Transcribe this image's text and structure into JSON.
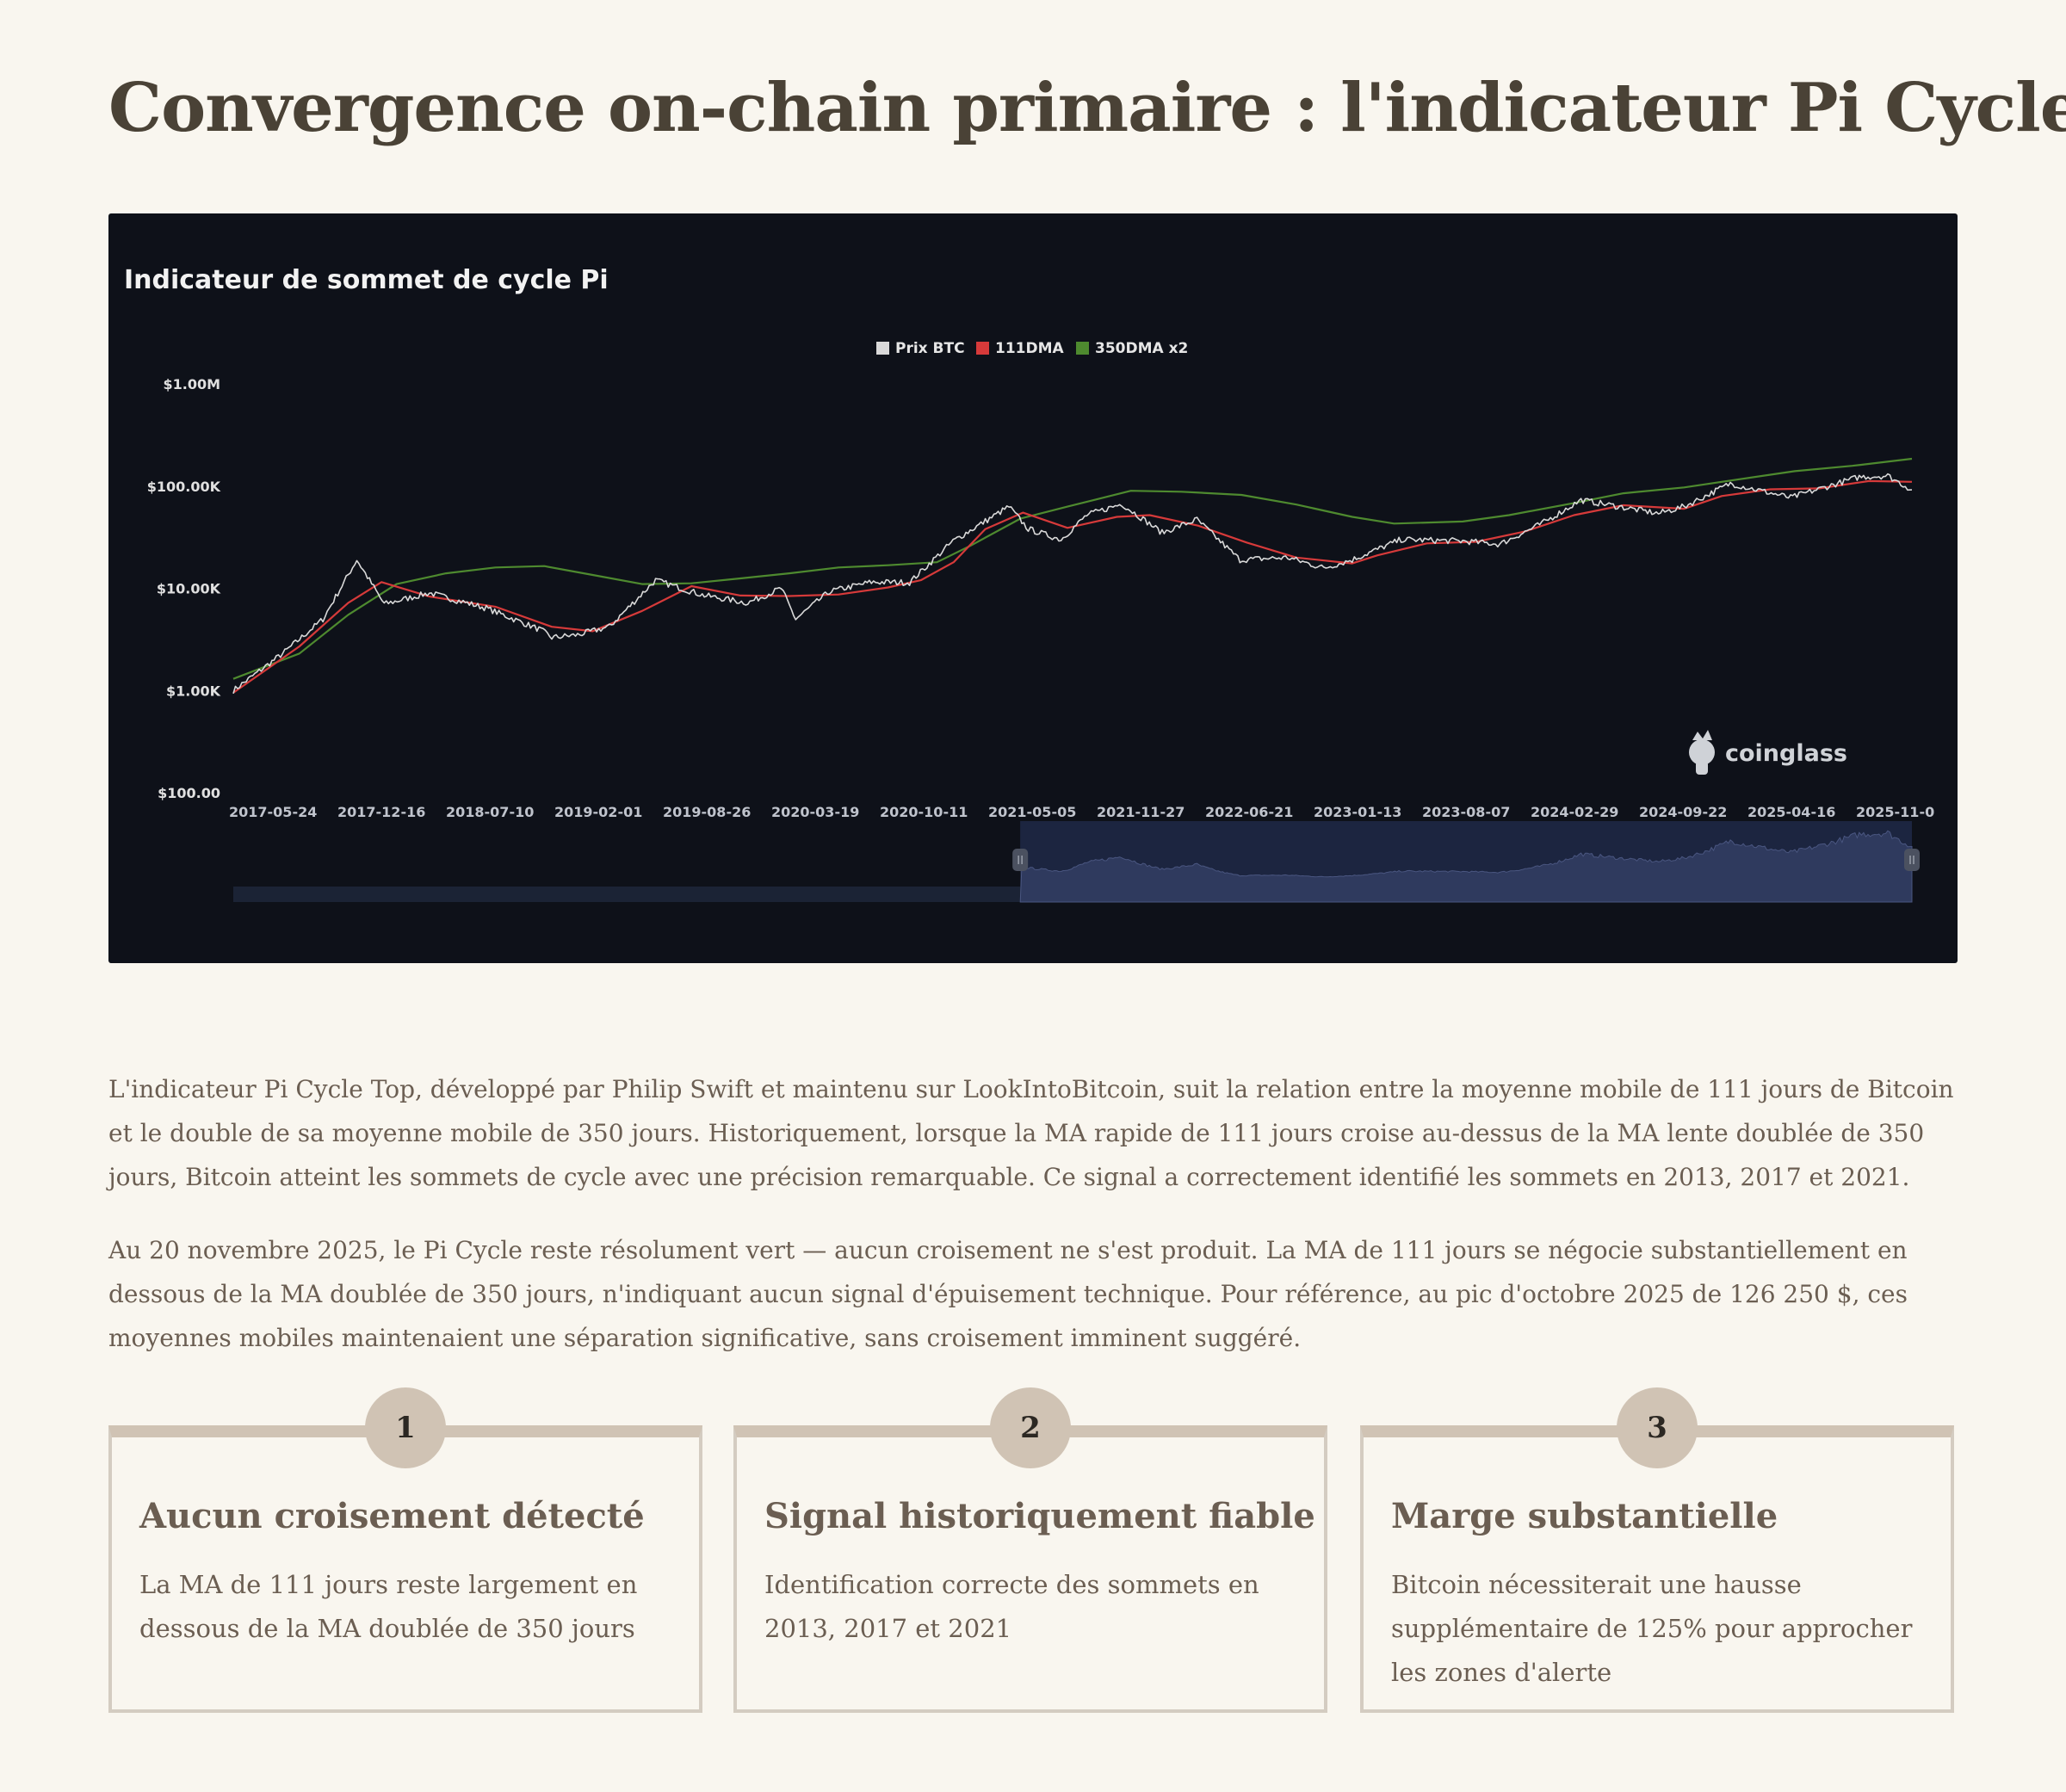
{
  "page": {
    "title": "Convergence on-chain primaire : l'indicateur Pi Cycle",
    "paragraphs": [
      "L'indicateur Pi Cycle Top, développé par Philip Swift et maintenu sur LookIntoBitcoin, suit la relation entre la moyenne mobile de 111 jours de Bitcoin et le double de sa moyenne mobile de 350 jours. Historiquement, lorsque la MA rapide de 111 jours croise au-dessus de la MA lente doublée de 350 jours, Bitcoin atteint les sommets de cycle avec une précision remarquable. Ce signal a correctement identifié les sommets en 2013, 2017 et 2021.",
      "Au 20 novembre 2025, le Pi Cycle reste résolument vert — aucun croisement ne s'est produit. La MA de 111 jours se négocie substantiellement en dessous de la MA doublée de 350 jours, n'indiquant aucun signal d'épuisement technique. Pour référence, au pic d'octobre 2025 de 126 250 $, ces moyennes mobiles maintenaient une séparation significative, sans croisement imminent suggéré."
    ],
    "cards": [
      {
        "number": "1",
        "title": "Aucun croisement détecté",
        "text": "La MA de 111 jours reste largement en dessous de la MA doublée de 350 jours"
      },
      {
        "number": "2",
        "title": "Signal historiquement fiable",
        "text": "Identification correcte des sommets en 2013, 2017 et 2021"
      },
      {
        "number": "3",
        "title": "Marge substantielle",
        "text": "Bitcoin nécessiterait une hausse supplémentaire de 125% pour approcher les zones d'alerte"
      }
    ]
  },
  "chart": {
    "brand": "coinglass",
    "brand_icon": "coinglass-logo-icon",
    "colors": {
      "background": "#0e1119",
      "price": "#d9d9d9",
      "dma111": "#d63a3a",
      "dma350x2": "#4e8a2f",
      "navigator": "#2c3656"
    }
  },
  "chart_data": {
    "type": "line",
    "title": "Indicateur de sommet de cycle Pi",
    "y_scale": "log",
    "ylim": [
      100,
      1000000
    ],
    "y_ticks": [
      "$1.00M",
      "$100.00K",
      "$10.00K",
      "$1.00K",
      "$100.00"
    ],
    "x_ticks": [
      "2017-05-24",
      "2017-12-16",
      "2018-07-10",
      "2019-02-01",
      "2019-08-26",
      "2020-03-19",
      "2020-10-11",
      "2021-05-05",
      "2021-11-27",
      "2022-06-21",
      "2023-01-13",
      "2023-08-07",
      "2024-02-29",
      "2024-09-22",
      "2025-04-16",
      "2025-11-0"
    ],
    "legend_position": "top-center",
    "series": [
      {
        "name": "Prix BTC",
        "points": [
          [
            "2017-05-01",
            1000
          ],
          [
            "2017-08-01",
            2300
          ],
          [
            "2017-10-15",
            5000
          ],
          [
            "2017-12-17",
            19000
          ],
          [
            "2018-02-06",
            7000
          ],
          [
            "2018-05-01",
            9000
          ],
          [
            "2018-08-15",
            6400
          ],
          [
            "2018-11-25",
            3900
          ],
          [
            "2018-12-15",
            3300
          ],
          [
            "2019-02-01",
            3500
          ],
          [
            "2019-04-01",
            4200
          ],
          [
            "2019-06-26",
            12000
          ],
          [
            "2019-09-25",
            8500
          ],
          [
            "2019-12-15",
            7200
          ],
          [
            "2020-02-15",
            10000
          ],
          [
            "2020-03-13",
            5000
          ],
          [
            "2020-05-15",
            9300
          ],
          [
            "2020-08-01",
            11500
          ],
          [
            "2020-10-11",
            11400
          ],
          [
            "2020-12-31",
            29000
          ],
          [
            "2021-04-14",
            63000
          ],
          [
            "2021-05-20",
            38000
          ],
          [
            "2021-07-20",
            30000
          ],
          [
            "2021-09-06",
            52000
          ],
          [
            "2021-11-10",
            67000
          ],
          [
            "2022-01-24",
            35000
          ],
          [
            "2022-03-30",
            47000
          ],
          [
            "2022-06-18",
            19000
          ],
          [
            "2022-09-15",
            20000
          ],
          [
            "2022-11-21",
            15800
          ],
          [
            "2023-01-13",
            19000
          ],
          [
            "2023-04-14",
            30000
          ],
          [
            "2023-08-07",
            29000
          ],
          [
            "2023-10-15",
            27000
          ],
          [
            "2024-01-01",
            43000
          ],
          [
            "2024-03-14",
            73000
          ],
          [
            "2024-08-05",
            54000
          ],
          [
            "2024-09-22",
            63000
          ],
          [
            "2024-12-17",
            106000
          ],
          [
            "2025-04-08",
            77000
          ],
          [
            "2025-08-14",
            123000
          ],
          [
            "2025-10-06",
            126250
          ],
          [
            "2025-11-20",
            92000
          ]
        ]
      },
      {
        "name": "111DMA",
        "points": [
          [
            "2017-05-01",
            950
          ],
          [
            "2017-09-01",
            2700
          ],
          [
            "2017-12-01",
            7200
          ],
          [
            "2018-02-01",
            11500
          ],
          [
            "2018-05-01",
            8300
          ],
          [
            "2018-09-01",
            6600
          ],
          [
            "2018-12-15",
            4200
          ],
          [
            "2019-03-01",
            3800
          ],
          [
            "2019-06-01",
            6000
          ],
          [
            "2019-09-01",
            10500
          ],
          [
            "2019-12-01",
            8500
          ],
          [
            "2020-03-01",
            8400
          ],
          [
            "2020-06-01",
            8700
          ],
          [
            "2020-09-01",
            10200
          ],
          [
            "2020-11-01",
            12000
          ],
          [
            "2021-01-01",
            18000
          ],
          [
            "2021-03-01",
            38000
          ],
          [
            "2021-05-10",
            55000
          ],
          [
            "2021-08-01",
            39000
          ],
          [
            "2021-11-01",
            50000
          ],
          [
            "2022-01-01",
            52000
          ],
          [
            "2022-04-01",
            41000
          ],
          [
            "2022-07-01",
            28000
          ],
          [
            "2022-10-01",
            20000
          ],
          [
            "2023-01-13",
            17500
          ],
          [
            "2023-03-01",
            21000
          ],
          [
            "2023-06-01",
            27500
          ],
          [
            "2023-09-01",
            28500
          ],
          [
            "2023-12-01",
            36000
          ],
          [
            "2024-03-01",
            52000
          ],
          [
            "2024-06-01",
            65000
          ],
          [
            "2024-09-22",
            60000
          ],
          [
            "2024-12-01",
            80000
          ],
          [
            "2025-03-01",
            93000
          ],
          [
            "2025-06-01",
            95000
          ],
          [
            "2025-09-01",
            112000
          ],
          [
            "2025-11-20",
            110000
          ]
        ]
      },
      {
        "name": "350DMA x2",
        "points": [
          [
            "2017-05-01",
            1300
          ],
          [
            "2017-09-01",
            2300
          ],
          [
            "2017-12-01",
            5500
          ],
          [
            "2018-03-01",
            11000
          ],
          [
            "2018-06-01",
            14000
          ],
          [
            "2018-09-01",
            16000
          ],
          [
            "2018-12-01",
            16500
          ],
          [
            "2019-03-01",
            13500
          ],
          [
            "2019-06-01",
            11000
          ],
          [
            "2019-09-01",
            11200
          ],
          [
            "2019-12-01",
            12500
          ],
          [
            "2020-03-01",
            14000
          ],
          [
            "2020-06-01",
            16000
          ],
          [
            "2020-09-01",
            16800
          ],
          [
            "2020-12-01",
            18000
          ],
          [
            "2021-02-01",
            26000
          ],
          [
            "2021-05-05",
            48000
          ],
          [
            "2021-08-01",
            63000
          ],
          [
            "2021-11-27",
            90000
          ],
          [
            "2022-03-01",
            88000
          ],
          [
            "2022-06-21",
            82000
          ],
          [
            "2022-10-01",
            66000
          ],
          [
            "2023-01-13",
            50000
          ],
          [
            "2023-04-01",
            43000
          ],
          [
            "2023-08-07",
            45000
          ],
          [
            "2023-11-01",
            52000
          ],
          [
            "2024-02-29",
            68000
          ],
          [
            "2024-06-01",
            85000
          ],
          [
            "2024-09-22",
            97000
          ],
          [
            "2024-12-01",
            110000
          ],
          [
            "2025-04-16",
            140000
          ],
          [
            "2025-08-01",
            158000
          ],
          [
            "2025-11-20",
            185000
          ]
        ]
      }
    ],
    "navigator": {
      "range_start": "2021-05-05",
      "range_end": "2025-11-20"
    }
  }
}
